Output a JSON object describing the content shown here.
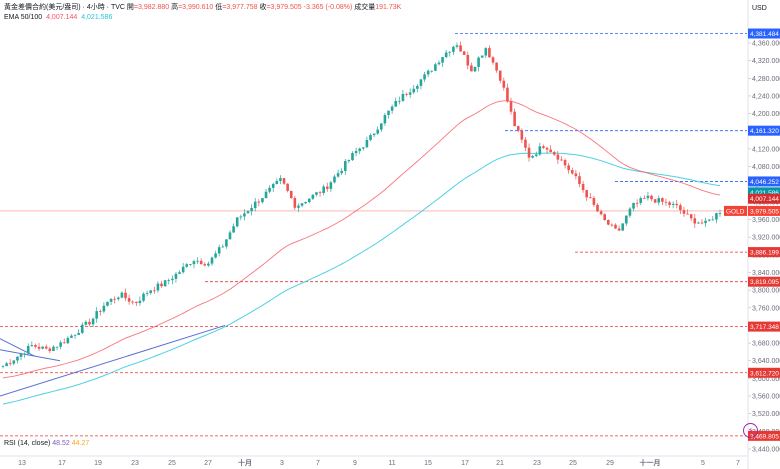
{
  "header": {
    "symbol_title": "黃金差價合約(美元/盎司) · 4小時 · TVC",
    "open_label": "開",
    "open_value": "=3,982.880",
    "high_label": "高",
    "high_value": "=3,990.610",
    "low_label": "低",
    "low_value": "=3,977.758",
    "close_label": "收",
    "close_value": "=3,979.505",
    "change": "-3.365 (-0.08%)",
    "volume_label": "成交量",
    "volume_value": "191.73K"
  },
  "ema_legend": {
    "label": "EMA 50/100",
    "ema50": "4,007.144",
    "ema100": "4,021.586"
  },
  "rsi_legend": {
    "label": "RSI (14, close)",
    "v1": "48.52",
    "v2": "44.27"
  },
  "colors": {
    "up": "#26a69a",
    "down": "#ef5350",
    "ema50": "#f7525f",
    "ema100": "#4dd0e1",
    "trend": "#5b6fd6",
    "support": "#e53935",
    "resist": "#2962ff"
  },
  "axis": {
    "currency": "USD",
    "badge_symbol": "GOLD"
  },
  "chart_data": {
    "type": "candlestick",
    "y_ticks": [
      "4,360.000",
      "4,320.000",
      "4,280.000",
      "4,240.000",
      "4,200.000",
      "4,160.000",
      "4,120.000",
      "4,080.000",
      "4,040.000",
      "4,000.000",
      "3,960.000",
      "3,920.000",
      "3,880.000",
      "3,840.000",
      "3,800.000",
      "3,760.000",
      "3,720.000",
      "3,680.000",
      "3,640.000",
      "3,600.000",
      "3,560.000",
      "3,520.000",
      "3,480.000",
      "3,440.000"
    ],
    "x_ticks": [
      "13",
      "17",
      "19",
      "23",
      "25",
      "27",
      "十月",
      "3",
      "7",
      "9",
      "11",
      "15",
      "17",
      "21",
      "23",
      "25",
      "29",
      "十一月",
      "5",
      "7"
    ],
    "levels": [
      {
        "value": 4381.484,
        "label": "4,381.484",
        "kind": "resist"
      },
      {
        "value": 4161.32,
        "label": "4,161.320",
        "kind": "resist"
      },
      {
        "value": 4046.252,
        "label": "4,046.252",
        "kind": "resist"
      },
      {
        "value": 3886.199,
        "label": "3,886.199",
        "kind": "support"
      },
      {
        "value": 3819.095,
        "label": "3,819.095",
        "kind": "support"
      },
      {
        "value": 3717.348,
        "label": "3,717.348",
        "kind": "support"
      },
      {
        "value": 3612.72,
        "label": "3,612.720",
        "kind": "support"
      },
      {
        "value": 3469.805,
        "label": "3,469.805",
        "kind": "support"
      }
    ],
    "current_price": {
      "value": 3979.505,
      "label": "3,979.505"
    },
    "ema_labels": {
      "ema50": {
        "value": 4007.144,
        "label": "4,007.144"
      },
      "ema100": {
        "value": 4021.586,
        "label": "4,021.586"
      }
    },
    "key_closes": [
      3628,
      3650,
      3675,
      3665,
      3680,
      3705,
      3730,
      3770,
      3790,
      3770,
      3800,
      3815,
      3840,
      3870,
      3860,
      3900,
      3960,
      3990,
      4020,
      4050,
      3990,
      4010,
      4030,
      4070,
      4110,
      4140,
      4190,
      4230,
      4260,
      4290,
      4330,
      4360,
      4300,
      4350,
      4280,
      4170,
      4100,
      4130,
      4100,
      4060,
      4010,
      3960,
      3930,
      3990,
      4010,
      4000,
      3990,
      3960,
      3950,
      3979
    ]
  }
}
